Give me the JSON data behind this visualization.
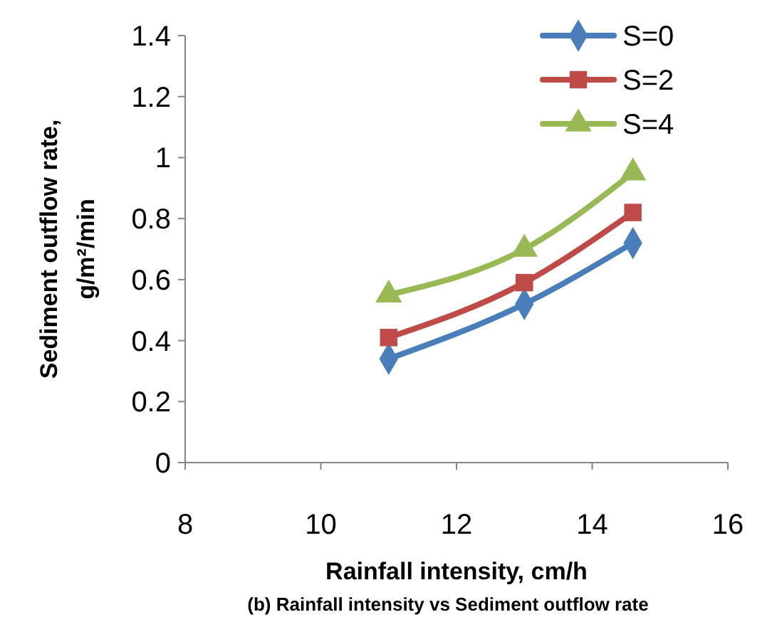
{
  "chart_data": {
    "type": "line",
    "xlabel": "Rainfall intensity, cm/h",
    "ylabel": "Sediment outflow rate,\ng/m²/min",
    "annotations": [
      "(b) Rainfall intensity vs Sediment outflow rate"
    ],
    "x": [
      11,
      13,
      14.6
    ],
    "series": [
      {
        "name": "S=0",
        "color": "#4a7ebb",
        "marker": "diamond",
        "values": [
          0.34,
          0.52,
          0.72
        ]
      },
      {
        "name": "S=2",
        "color": "#be4b48",
        "marker": "square",
        "values": [
          0.41,
          0.59,
          0.82
        ]
      },
      {
        "name": "S=4",
        "color": "#98b954",
        "marker": "triangle",
        "values": [
          0.55,
          0.7,
          0.95
        ]
      }
    ],
    "xlim": [
      8,
      16
    ],
    "xticks": [
      8,
      10,
      12,
      14,
      16
    ],
    "ylim": [
      0,
      1.4
    ],
    "yticks": [
      0,
      0.2,
      0.4,
      0.6,
      0.8,
      1,
      1.2,
      1.4
    ],
    "grid": false,
    "legend": "top right",
    "line_style": "solid"
  }
}
